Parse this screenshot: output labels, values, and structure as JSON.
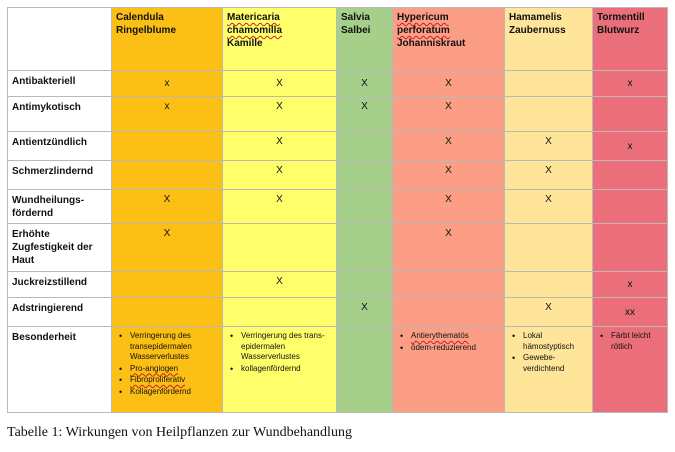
{
  "columns": [
    {
      "line1": "Calendula",
      "line2": "Ringelblume",
      "line3": ""
    },
    {
      "line1": "Matericaria",
      "line2": "chamomilla",
      "line3": "Kamille"
    },
    {
      "line1": "Salvia",
      "line2": "Salbei",
      "line3": ""
    },
    {
      "line1": "Hypericum",
      "line2": "perforatum",
      "line3": "Johanniskraut"
    },
    {
      "line1": "Hamamelis",
      "line2": "Zaubernuss",
      "line3": ""
    },
    {
      "line1": "Tormentill",
      "line2": "Blutwurz",
      "line3": ""
    }
  ],
  "rows": [
    {
      "label": "Antibakteriell",
      "marks": [
        "x",
        "X",
        "X",
        "X",
        "",
        "x"
      ]
    },
    {
      "label": "Antimykotisch",
      "marks": [
        "x",
        "X",
        "X",
        "X",
        "",
        ""
      ]
    },
    {
      "label": "Antientzündlich",
      "marks": [
        "",
        "X",
        "",
        "X",
        "X",
        "x"
      ]
    },
    {
      "label": "Schmerzlindernd",
      "marks": [
        "",
        "X",
        "",
        "X",
        "X",
        ""
      ]
    },
    {
      "label": "Wundheilungs-fördernd",
      "marks": [
        "X",
        "X",
        "",
        "X",
        "X",
        ""
      ]
    },
    {
      "label": "Erhöhte Zugfestigkeit der Haut",
      "marks": [
        "X",
        "",
        "",
        "X",
        "",
        ""
      ]
    },
    {
      "label": "Juckreizstillend",
      "marks": [
        "",
        "X",
        "",
        "",
        "",
        "x"
      ]
    },
    {
      "label": "Adstringierend",
      "marks": [
        "",
        "",
        "X",
        "",
        "X",
        "xx"
      ]
    }
  ],
  "special": {
    "label": "Besonderheit",
    "notes": [
      [
        "Verringerung des transepidermalen Wasserverlustes",
        "Pro-angiogen",
        "Fibroproliferativ",
        "Kollagenfördernd"
      ],
      [
        "Verringerung des trans-epidermalen Wasserverlustes",
        "kollagenfördernd"
      ],
      [],
      [
        "Antierythematös",
        "ödem-reduzierend"
      ],
      [
        "Lokal hämostyptisch",
        "Gewebe-verdichtend"
      ],
      [
        "Färbt leicht rötlich"
      ]
    ]
  },
  "colors": {
    "calendula": "#fbbf15",
    "kamille": "#ffff6c",
    "salbei": "#a6cf89",
    "johanniskraut": "#fb9e85",
    "zaubernuss": "#fee59a",
    "blutwurz": "#ea6f7b"
  },
  "caption": "Tabelle 1: Wirkungen von Heilpflanzen zur Wundbehandlung"
}
